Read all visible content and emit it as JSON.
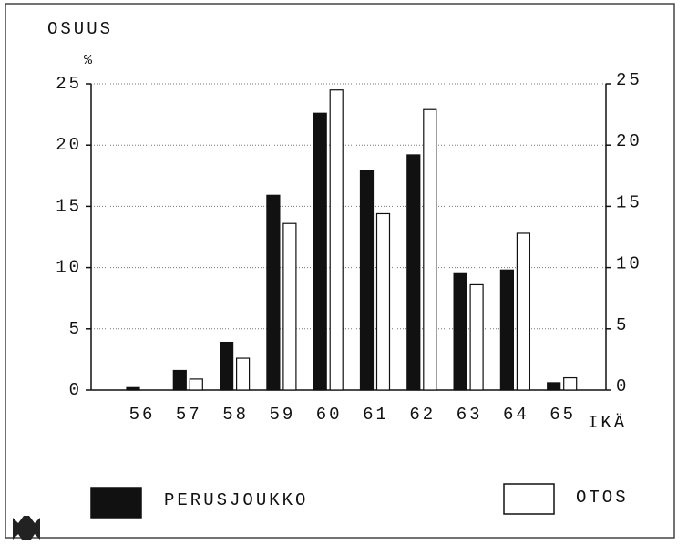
{
  "chart_data": {
    "type": "bar",
    "y_label": "OSUUS",
    "y_unit": "%",
    "x_label": "IKÄ",
    "categories": [
      "56",
      "57",
      "58",
      "59",
      "60",
      "61",
      "62",
      "63",
      "64",
      "65"
    ],
    "series": [
      {
        "name": "PERUSJOUKKO",
        "color": "#111111",
        "values": [
          0.2,
          1.6,
          3.9,
          15.9,
          22.6,
          17.9,
          19.2,
          9.5,
          9.8,
          0.6
        ]
      },
      {
        "name": "OTOS",
        "color": "#ffffff",
        "values": [
          0,
          0.9,
          2.6,
          13.6,
          24.5,
          14.4,
          22.9,
          8.6,
          12.8,
          1.0
        ]
      }
    ],
    "ylim": [
      0,
      25
    ],
    "yticks": [
      0,
      5,
      10,
      15,
      20,
      25
    ],
    "y2lim": [
      0,
      25
    ],
    "y2ticks": [
      0,
      5,
      10,
      15,
      20,
      25
    ],
    "grid": true
  }
}
